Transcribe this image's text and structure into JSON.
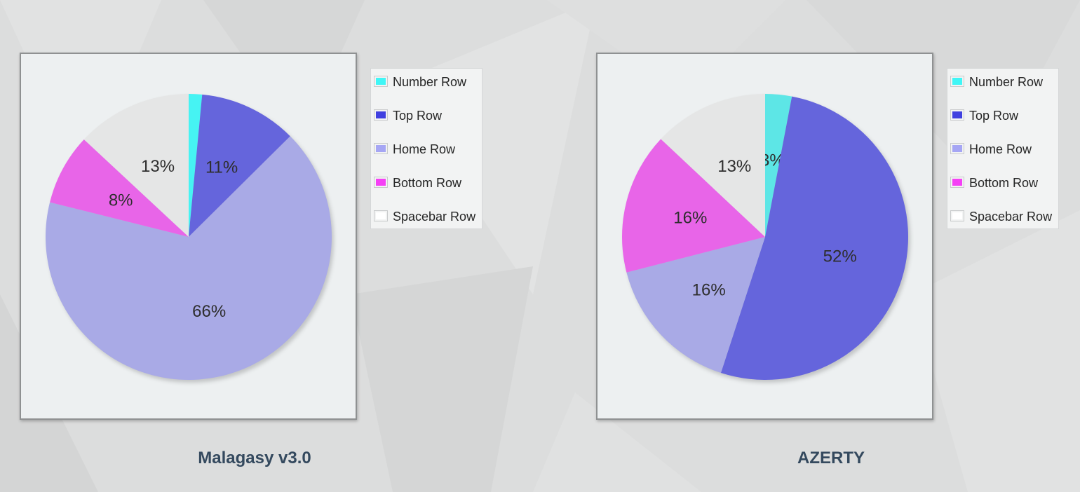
{
  "chart_data": [
    {
      "type": "pie",
      "title": "Malagasy v3.0",
      "categories": [
        "Number Row",
        "Top Row",
        "Home Row",
        "Bottom Row",
        "Spacebar Row"
      ],
      "values": [
        1.5,
        11,
        66,
        8,
        13
      ],
      "labels": [
        "",
        "11%",
        "66%",
        "8%",
        "13%"
      ],
      "colors": [
        "#46f3f3",
        "#6565dc",
        "#a9aae6",
        "#e865e8",
        "#e5e6e6"
      ],
      "legend_position": "right"
    },
    {
      "type": "pie",
      "title": "AZERTY",
      "categories": [
        "Number Row",
        "Top Row",
        "Home Row",
        "Bottom Row",
        "Spacebar Row"
      ],
      "values": [
        3,
        52,
        16,
        16,
        13
      ],
      "labels": [
        "3%",
        "52%",
        "16%",
        "16%",
        "13%"
      ],
      "colors": [
        "#5de6e6",
        "#6565dc",
        "#a9aae6",
        "#e865e8",
        "#e5e6e6"
      ],
      "legend_position": "right"
    }
  ],
  "legend": {
    "colors": [
      "#40f6f6",
      "#4040e0",
      "#a6a6f4",
      "#f540f5",
      "#ffffff"
    ]
  }
}
